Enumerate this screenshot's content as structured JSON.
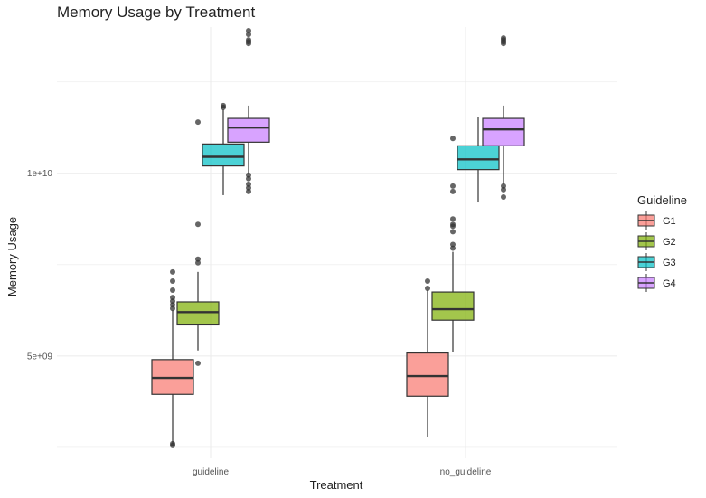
{
  "chart_data": {
    "type": "boxplot",
    "title": "Memory Usage by Treatment",
    "xlabel": "Treatment",
    "ylabel": "Memory Usage",
    "categories": [
      "guideline",
      "no_guideline"
    ],
    "y_ticks": [
      {
        "value": 5000000000,
        "label": "5e+09"
      },
      {
        "value": 10000000000,
        "label": "1e+10"
      }
    ],
    "ylim": [
      2200000000,
      14000000000
    ],
    "grid": true,
    "legend": {
      "title": "Guideline",
      "position": "right"
    },
    "series": [
      {
        "name": "G1",
        "color": "#f8766d",
        "boxes": [
          {
            "category": "guideline",
            "min": 2600000000,
            "q1": 3950000000,
            "median": 4400000000,
            "q3": 4900000000,
            "max": 6250000000,
            "outliers": [
              2550000000,
              2600000000,
              6300000000,
              6400000000,
              6500000000,
              6600000000,
              6800000000,
              7050000000,
              7300000000
            ]
          },
          {
            "category": "no_guideline",
            "min": 2780000000,
            "q1": 3900000000,
            "median": 4450000000,
            "q3": 5080000000,
            "max": 6800000000,
            "outliers": [
              6850000000,
              7050000000
            ]
          }
        ]
      },
      {
        "name": "G2",
        "color": "#7cae00",
        "boxes": [
          {
            "category": "guideline",
            "min": 5150000000,
            "q1": 5850000000,
            "median": 6200000000,
            "q3": 6480000000,
            "max": 7300000000,
            "outliers": [
              4800000000,
              7550000000,
              7650000000,
              8600000000,
              11400000000
            ]
          },
          {
            "category": "no_guideline",
            "min": 5100000000,
            "q1": 5980000000,
            "median": 6280000000,
            "q3": 6750000000,
            "max": 7850000000,
            "outliers": [
              7950000000,
              8050000000,
              8400000000,
              8550000000,
              8600000000,
              8750000000,
              9500000000,
              9650000000,
              10950000000
            ]
          }
        ]
      },
      {
        "name": "G3",
        "color": "#00bfc4",
        "boxes": [
          {
            "category": "guideline",
            "min": 9400000000,
            "q1": 10200000000,
            "median": 10450000000,
            "q3": 10800000000,
            "max": 11750000000,
            "outliers": [
              11800000000,
              11850000000
            ]
          },
          {
            "category": "no_guideline",
            "min": 9200000000,
            "q1": 10100000000,
            "median": 10380000000,
            "q3": 10750000000,
            "max": 11550000000,
            "outliers": []
          }
        ]
      },
      {
        "name": "G4",
        "color": "#c77cff",
        "boxes": [
          {
            "category": "guideline",
            "min": 10000000000,
            "q1": 10850000000,
            "median": 11250000000,
            "q3": 11500000000,
            "max": 11850000000,
            "outliers": [
              9500000000,
              9600000000,
              9700000000,
              9850000000,
              9950000000,
              13550000000,
              13600000000,
              13650000000,
              13800000000,
              13900000000
            ]
          },
          {
            "category": "no_guideline",
            "min": 9700000000,
            "q1": 10750000000,
            "median": 11200000000,
            "q3": 11500000000,
            "max": 11850000000,
            "outliers": [
              9350000000,
              9550000000,
              9650000000,
              13550000000,
              13600000000,
              13650000000,
              13700000000
            ]
          }
        ]
      }
    ]
  }
}
